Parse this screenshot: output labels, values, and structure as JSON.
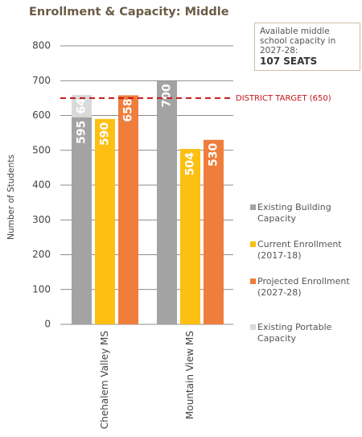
{
  "chart_data": {
    "type": "bar",
    "title": "Enrollment & Capacity: Middle",
    "y_label": "Number of Students",
    "categories": [
      "Chehalem Valley MS",
      "Mountain View MS"
    ],
    "series": [
      {
        "name": "Existing Building Capacity",
        "color": "#a3a3a3",
        "values": [
          595,
          700
        ]
      },
      {
        "name": "Current Enrollment (2017-18)",
        "color": "#fcbf12",
        "values": [
          590,
          504
        ]
      },
      {
        "name": "Projected Enrollment (2027-28)",
        "color": "#ef7d3c",
        "values": [
          658,
          530
        ]
      },
      {
        "name": "Existing Portable Capacity",
        "color": "#dadada",
        "values": [
          64,
          null
        ],
        "stack_on": 0
      }
    ],
    "ylim": [
      0,
      800
    ],
    "yticks": [
      0,
      100,
      200,
      300,
      400,
      500,
      600,
      700,
      800
    ],
    "grid": true,
    "target": {
      "value": 650,
      "label": "DISTRICT TARGET (650)",
      "color": "#c4161c"
    },
    "callout": {
      "text": "Available middle school capacity in 2027-28:",
      "highlight": "107 SEATS"
    }
  }
}
